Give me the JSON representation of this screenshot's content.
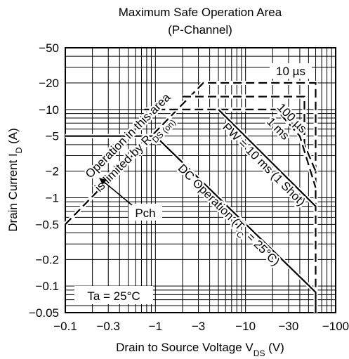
{
  "chart_data": {
    "type": "line",
    "title": "Maximum Safe Operation Area",
    "subtitle": "(P-Channel)",
    "xlabel": {
      "main": "Drain to Source Voltage  V",
      "sub": "DS",
      "unit": "  (V)"
    },
    "ylabel": {
      "main": "Drain Current  I",
      "sub": "D",
      "unit": "  (A)"
    },
    "x_scale": "log",
    "y_scale": "log",
    "xlim": [
      -0.1,
      -100
    ],
    "ylim": [
      -0.05,
      -50
    ],
    "x_ticks": [
      {
        "value": -0.1,
        "label": "−0.1"
      },
      {
        "value": -0.3,
        "label": "−0.3"
      },
      {
        "value": -1,
        "label": "−1"
      },
      {
        "value": -3,
        "label": "−3"
      },
      {
        "value": -10,
        "label": "−10"
      },
      {
        "value": -30,
        "label": "−30"
      },
      {
        "value": -100,
        "label": "−100"
      }
    ],
    "y_ticks": [
      {
        "value": -50,
        "label": "−50"
      },
      {
        "value": -20,
        "label": "−20"
      },
      {
        "value": -10,
        "label": "−10"
      },
      {
        "value": -5,
        "label": "−5"
      },
      {
        "value": -2,
        "label": "−2"
      },
      {
        "value": -1,
        "label": "−1"
      },
      {
        "value": -0.5,
        "label": "−0.5"
      },
      {
        "value": -0.2,
        "label": "−0.2"
      },
      {
        "value": -0.1,
        "label": "−0.1"
      },
      {
        "value": -0.05,
        "label": "−0.05"
      }
    ],
    "grid": true,
    "series": [
      {
        "style": "dashed",
        "points": [
          [
            -0.1,
            -0.5
          ],
          [
            -3.4,
            -20
          ],
          [
            -60,
            -20
          ],
          [
            -60,
            -0.05
          ]
        ]
      },
      {
        "style": "dashed",
        "points": [
          [
            -2,
            -14
          ],
          [
            -45,
            -14
          ],
          [
            -45,
            -4
          ],
          [
            -60,
            -2
          ]
        ]
      },
      {
        "style": "dashed",
        "points": [
          [
            -0.75,
            -10
          ],
          [
            -22,
            -10
          ],
          [
            -40,
            -5
          ],
          [
            -60,
            -1.3
          ]
        ]
      },
      {
        "style": "solid",
        "points": [
          [
            -5,
            -10
          ],
          [
            -60,
            -0.8
          ]
        ]
      },
      {
        "style": "solid",
        "points": [
          [
            -0.1,
            -5
          ],
          [
            -1,
            -5
          ],
          [
            -60,
            -0.085
          ],
          [
            -60,
            -0.05
          ]
        ]
      }
    ],
    "annotations": {
      "t10us": "10 µs",
      "t100us": "100 µs",
      "t1ms": "1 ms",
      "pw_main": "PW = 10 ms (1 Shot)",
      "dc_main": "DC Operation (T",
      "dc_sub": "C",
      "dc_end": " = 25°C)",
      "rds_line1": "Operation in this area",
      "rds_line2_main": "is limited by R",
      "rds_line2_sub": "DS (on)",
      "pch": "Pch",
      "ta": "Ta = 25°C"
    }
  }
}
